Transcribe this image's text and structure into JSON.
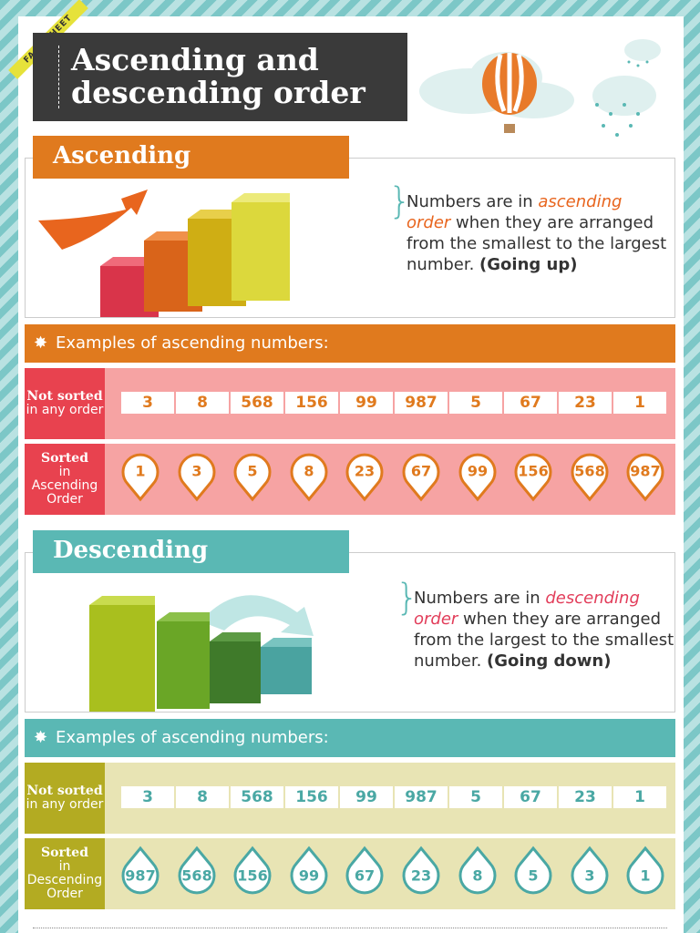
{
  "badge": "FACT SHEET",
  "title": [
    "Ascending and",
    "descending order"
  ],
  "sections": [
    {
      "heading": "Ascending",
      "description": [
        "Numbers are in ",
        "ascending order",
        " when they are arranged from the smallest to the largest number. ",
        "(Going up)"
      ],
      "examples_heading": "Examples of ascending numbers:",
      "unsorted": {
        "label": [
          "Not sorted",
          "in any order"
        ],
        "values": [
          3,
          8,
          568,
          156,
          99,
          987,
          5,
          67,
          23,
          1
        ]
      },
      "sorted": {
        "label": [
          "Sorted",
          "in Ascending Order"
        ],
        "values": [
          1,
          3,
          5,
          8,
          23,
          67,
          99,
          156,
          568,
          987
        ]
      }
    },
    {
      "heading": "Descending",
      "description": [
        "Numbers are in ",
        "descending order",
        " when they are arranged from the largest to the smallest number. ",
        "(Going down)"
      ],
      "examples_heading": "Examples of ascending numbers:",
      "unsorted": {
        "label": [
          "Not sorted",
          "in any order"
        ],
        "values": [
          3,
          8,
          568,
          156,
          99,
          987,
          5,
          67,
          23,
          1
        ]
      },
      "sorted": {
        "label": [
          "Sorted",
          "in Descending Order"
        ],
        "values": [
          987,
          568,
          156,
          99,
          67,
          23,
          8,
          5,
          3,
          1
        ]
      }
    }
  ]
}
